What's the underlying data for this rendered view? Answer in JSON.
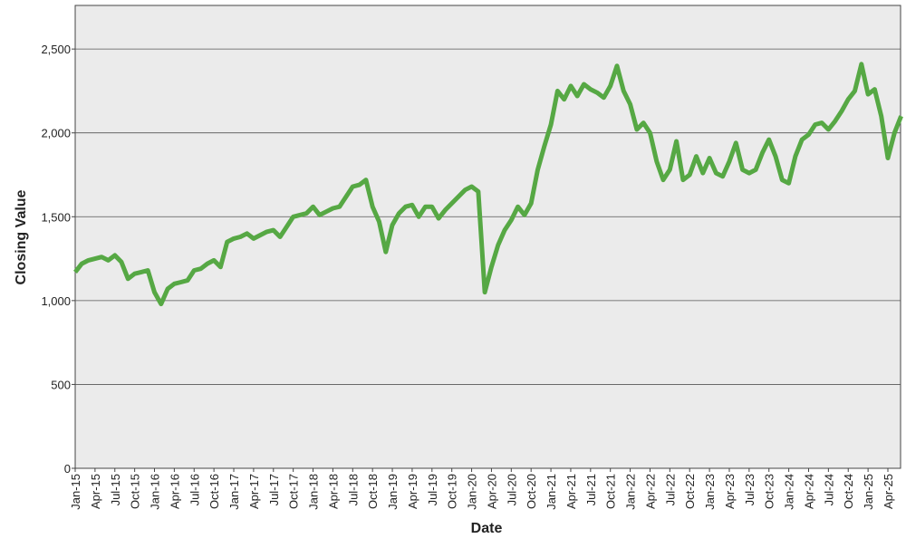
{
  "chart_data": {
    "type": "line",
    "x_label": "Date",
    "y_label": "Closing Value",
    "x": [
      "Jan-15",
      "Feb-15",
      "Mar-15",
      "Apr-15",
      "May-15",
      "Jun-15",
      "Jul-15",
      "Aug-15",
      "Sep-15",
      "Oct-15",
      "Nov-15",
      "Dec-15",
      "Jan-16",
      "Feb-16",
      "Mar-16",
      "Apr-16",
      "May-16",
      "Jun-16",
      "Jul-16",
      "Aug-16",
      "Sep-16",
      "Oct-16",
      "Nov-16",
      "Dec-16",
      "Jan-17",
      "Feb-17",
      "Mar-17",
      "Apr-17",
      "May-17",
      "Jun-17",
      "Jul-17",
      "Aug-17",
      "Sep-17",
      "Oct-17",
      "Nov-17",
      "Dec-17",
      "Jan-18",
      "Feb-18",
      "Mar-18",
      "Apr-18",
      "May-18",
      "Jun-18",
      "Jul-18",
      "Aug-18",
      "Sep-18",
      "Oct-18",
      "Nov-18",
      "Dec-18",
      "Jan-19",
      "Feb-19",
      "Mar-19",
      "Apr-19",
      "May-19",
      "Jun-19",
      "Jul-19",
      "Aug-19",
      "Sep-19",
      "Oct-19",
      "Nov-19",
      "Dec-19",
      "Jan-20",
      "Feb-20",
      "Mar-20",
      "Apr-20",
      "May-20",
      "Jun-20",
      "Jul-20",
      "Aug-20",
      "Sep-20",
      "Oct-20",
      "Nov-20",
      "Dec-20",
      "Jan-21",
      "Feb-21",
      "Mar-21",
      "Apr-21",
      "May-21",
      "Jun-21",
      "Jul-21",
      "Aug-21",
      "Sep-21",
      "Oct-21",
      "Nov-21",
      "Dec-21",
      "Jan-22",
      "Feb-22",
      "Mar-22",
      "Apr-22",
      "May-22",
      "Jun-22",
      "Jul-22",
      "Aug-22",
      "Sep-22",
      "Oct-22",
      "Nov-22",
      "Dec-22",
      "Jan-23",
      "Feb-23",
      "Mar-23",
      "Apr-23",
      "May-23",
      "Jun-23",
      "Jul-23",
      "Aug-23",
      "Sep-23",
      "Oct-23",
      "Nov-23",
      "Dec-23",
      "Jan-24",
      "Feb-24",
      "Mar-24",
      "Apr-24",
      "May-24",
      "Jun-24",
      "Jul-24",
      "Aug-24",
      "Sep-24",
      "Oct-24",
      "Nov-24",
      "Dec-24",
      "Jan-25",
      "Feb-25",
      "Mar-25",
      "Apr-25",
      "May-25",
      "Jun-25"
    ],
    "values": [
      1170,
      1220,
      1240,
      1250,
      1260,
      1240,
      1270,
      1230,
      1130,
      1160,
      1170,
      1180,
      1050,
      980,
      1070,
      1100,
      1110,
      1120,
      1180,
      1190,
      1220,
      1240,
      1200,
      1350,
      1370,
      1380,
      1400,
      1370,
      1390,
      1410,
      1420,
      1380,
      1440,
      1500,
      1510,
      1520,
      1560,
      1510,
      1530,
      1550,
      1560,
      1620,
      1680,
      1690,
      1720,
      1560,
      1470,
      1290,
      1450,
      1520,
      1560,
      1570,
      1500,
      1560,
      1560,
      1490,
      1540,
      1580,
      1620,
      1660,
      1680,
      1650,
      1050,
      1200,
      1330,
      1420,
      1480,
      1560,
      1510,
      1580,
      1780,
      1920,
      2050,
      2250,
      2200,
      2280,
      2220,
      2290,
      2260,
      2240,
      2210,
      2280,
      2400,
      2250,
      2170,
      2020,
      2060,
      2000,
      1830,
      1720,
      1780,
      1950,
      1720,
      1750,
      1860,
      1760,
      1850,
      1760,
      1740,
      1830,
      1940,
      1780,
      1760,
      1780,
      1880,
      1960,
      1860,
      1720,
      1700,
      1860,
      1960,
      1990,
      2050,
      2060,
      2020,
      2070,
      2130,
      2200,
      2250,
      2410,
      2230,
      2260,
      2100,
      1850,
      2000,
      2100
    ],
    "color": "#56a844",
    "xticks": [
      "Jan-15",
      "Apr-15",
      "Jul-15",
      "Oct-15",
      "Jan-16",
      "Apr-16",
      "Jul-16",
      "Oct-16",
      "Jan-17",
      "Apr-17",
      "Jul-17",
      "Oct-17",
      "Jan-18",
      "Apr-18",
      "Jul-18",
      "Oct-18",
      "Jan-19",
      "Apr-19",
      "Jul-19",
      "Oct-19",
      "Jan-20",
      "Apr-20",
      "Jul-20",
      "Oct-20",
      "Jan-21",
      "Apr-21",
      "Jul-21",
      "Oct-21",
      "Jan-22",
      "Apr-22",
      "Jul-22",
      "Oct-22",
      "Jan-23",
      "Apr-23",
      "Jul-23",
      "Oct-23",
      "Jan-24",
      "Apr-24",
      "Jul-24",
      "Oct-24",
      "Jan-25",
      "Apr-25"
    ],
    "ylim": [
      0,
      2760
    ],
    "yticks": [
      0,
      500,
      {
        "value": 1000,
        "label": "1,000"
      },
      {
        "value": 1500,
        "label": "1,500"
      },
      {
        "value": 2000,
        "label": "2,000"
      },
      {
        "value": 2500,
        "label": "2,500"
      }
    ],
    "grid": true
  }
}
